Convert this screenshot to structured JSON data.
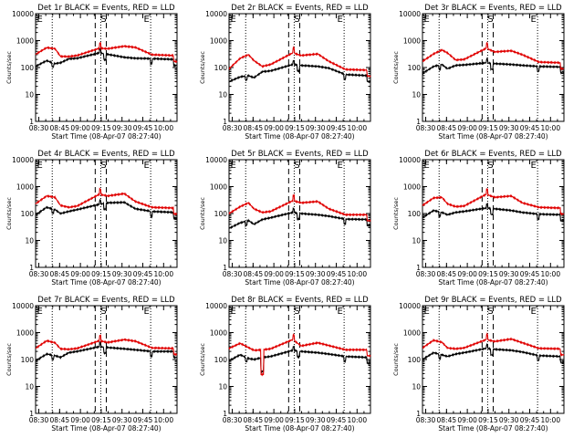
{
  "chart_data": [
    {
      "type": "line",
      "title": "Det 1r BLACK = Events, RED = LLD",
      "xlabel": "Start Time (08-Apr-07 08:27:40)",
      "ylabel": "Counts/sec",
      "yscale": "log",
      "ylim": [
        1,
        10000
      ],
      "yticks": [
        "1",
        "10",
        "100",
        "1000",
        "10000"
      ],
      "xticks": [
        "08:30",
        "08:45",
        "09:00",
        "09:15",
        "09:30",
        "09:45",
        "10:00"
      ],
      "markers": [
        "E",
        "S",
        "E"
      ],
      "dip_style": "small",
      "series": [
        {
          "name": "Events",
          "color": "#000000",
          "values": [
            110,
            180,
            140,
            150,
            210,
            220,
            350,
            310,
            240,
            220,
            215,
            200
          ]
        },
        {
          "name": "LLD",
          "color": "#e00000",
          "values": [
            310,
            550,
            500,
            260,
            255,
            280,
            520,
            500,
            620,
            560,
            300,
            280
          ]
        }
      ]
    },
    {
      "type": "line",
      "title": "Det 2r BLACK = Events, RED = LLD",
      "xlabel": "Start Time (08-Apr-07 08:27:40)",
      "ylabel": "Counts/sec",
      "yscale": "log",
      "ylim": [
        1,
        10000
      ],
      "yticks": [
        "1",
        "10",
        "100",
        "1000",
        "10000"
      ],
      "xticks": [
        "08:30",
        "08:45",
        "09:00",
        "09:15",
        "09:30",
        "09:45",
        "10:00"
      ],
      "markers": [
        "E",
        "S",
        "E"
      ],
      "dip_style": "small",
      "series": [
        {
          "name": "Events",
          "color": "#000000",
          "values": [
            30,
            45,
            50,
            42,
            70,
            75,
            130,
            120,
            110,
            95,
            55,
            50
          ]
        },
        {
          "name": "LLD",
          "color": "#e00000",
          "values": [
            90,
            220,
            300,
            180,
            110,
            130,
            350,
            280,
            320,
            170,
            85,
            80
          ]
        }
      ]
    },
    {
      "type": "line",
      "title": "Det 3r BLACK = Events, RED = LLD",
      "xlabel": "Start Time (08-Apr-07 08:27:40)",
      "ylabel": "Counts/sec",
      "yscale": "log",
      "ylim": [
        1,
        10000
      ],
      "yticks": [
        "1",
        "10",
        "100",
        "1000",
        "10000"
      ],
      "xticks": [
        "08:30",
        "08:45",
        "09:00",
        "09:15",
        "09:30",
        "09:45",
        "10:00"
      ],
      "markers": [
        "E",
        "S",
        "E"
      ],
      "dip_style": "small",
      "series": [
        {
          "name": "Events",
          "color": "#000000",
          "values": [
            60,
            110,
            130,
            90,
            120,
            125,
            150,
            140,
            130,
            120,
            110,
            105
          ]
        },
        {
          "name": "LLD",
          "color": "#e00000",
          "values": [
            170,
            320,
            450,
            350,
            190,
            200,
            520,
            380,
            420,
            300,
            160,
            150
          ]
        }
      ]
    },
    {
      "type": "line",
      "title": "Det 4r BLACK = Events, RED = LLD",
      "xlabel": "Start Time (08-Apr-07 08:27:40)",
      "ylabel": "Counts/sec",
      "yscale": "log",
      "ylim": [
        1,
        10000
      ],
      "yticks": [
        "1",
        "10",
        "100",
        "1000",
        "10000"
      ],
      "xticks": [
        "08:30",
        "08:45",
        "09:00",
        "09:15",
        "09:30",
        "09:45",
        "10:00"
      ],
      "markers": [
        "E",
        "S",
        "E"
      ],
      "dip_style": "small",
      "series": [
        {
          "name": "Events",
          "color": "#000000",
          "values": [
            90,
            170,
            140,
            100,
            120,
            140,
            220,
            250,
            260,
            150,
            120,
            110
          ]
        },
        {
          "name": "LLD",
          "color": "#e00000",
          "values": [
            230,
            450,
            400,
            200,
            170,
            190,
            520,
            450,
            550,
            280,
            170,
            160
          ]
        }
      ]
    },
    {
      "type": "line",
      "title": "Det 5r BLACK = Events, RED = LLD",
      "xlabel": "Start Time (08-Apr-07 08:27:40)",
      "ylabel": "Counts/sec",
      "yscale": "log",
      "ylim": [
        1,
        10000
      ],
      "yticks": [
        "1",
        "10",
        "100",
        "1000",
        "10000"
      ],
      "xticks": [
        "08:30",
        "08:45",
        "09:00",
        "09:15",
        "09:30",
        "09:45",
        "10:00"
      ],
      "markers": [
        "E",
        "S",
        "E"
      ],
      "dip_style": "small",
      "series": [
        {
          "name": "Events",
          "color": "#000000",
          "values": [
            28,
            45,
            55,
            40,
            60,
            70,
            110,
            100,
            90,
            80,
            62,
            60
          ]
        },
        {
          "name": "LLD",
          "color": "#e00000",
          "values": [
            100,
            180,
            250,
            150,
            110,
            120,
            300,
            250,
            280,
            150,
            90,
            90
          ]
        }
      ]
    },
    {
      "type": "line",
      "title": "Det 6r BLACK = Events, RED = LLD",
      "xlabel": "Start Time (08-Apr-07 08:27:40)",
      "ylabel": "Counts/sec",
      "yscale": "log",
      "ylim": [
        1,
        10000
      ],
      "yticks": [
        "1",
        "10",
        "100",
        "1000",
        "10000"
      ],
      "xticks": [
        "08:30",
        "08:45",
        "09:00",
        "09:15",
        "09:30",
        "09:45",
        "10:00"
      ],
      "markers": [
        "E",
        "S",
        "E"
      ],
      "dip_style": "small",
      "series": [
        {
          "name": "Events",
          "color": "#000000",
          "values": [
            70,
            130,
            110,
            90,
            110,
            120,
            160,
            150,
            130,
            110,
            95,
            90
          ]
        },
        {
          "name": "LLD",
          "color": "#e00000",
          "values": [
            200,
            380,
            400,
            230,
            180,
            190,
            520,
            400,
            450,
            250,
            170,
            160
          ]
        }
      ]
    },
    {
      "type": "line",
      "title": "Det 7r BLACK = Events, RED = LLD",
      "xlabel": "Start Time (08-Apr-07 08:27:40)",
      "ylabel": "Counts/sec",
      "yscale": "log",
      "ylim": [
        1,
        10000
      ],
      "yticks": [
        "1",
        "10",
        "100",
        "1000",
        "10000"
      ],
      "xticks": [
        "08:30",
        "08:45",
        "09:00",
        "09:15",
        "09:30",
        "09:45",
        "10:00"
      ],
      "markers": [
        "E",
        "S",
        "E"
      ],
      "dip_style": "small",
      "series": [
        {
          "name": "Events",
          "color": "#000000",
          "values": [
            90,
            160,
            140,
            120,
            180,
            200,
            300,
            280,
            250,
            230,
            200,
            200
          ]
        },
        {
          "name": "LLD",
          "color": "#e00000",
          "values": [
            260,
            500,
            420,
            250,
            240,
            260,
            500,
            430,
            550,
            480,
            270,
            260
          ]
        }
      ]
    },
    {
      "type": "line",
      "title": "Det 8r BLACK = Events, RED = LLD",
      "xlabel": "Start Time (08-Apr-07 08:27:40)",
      "ylabel": "Counts/sec",
      "yscale": "log",
      "ylim": [
        1,
        10000
      ],
      "yticks": [
        "1",
        "10",
        "100",
        "1000",
        "10000"
      ],
      "xticks": [
        "08:30",
        "08:45",
        "09:00",
        "09:15",
        "09:30",
        "09:45",
        "10:00"
      ],
      "markers": [
        "E",
        "S",
        "E"
      ],
      "dip_style": "deep",
      "series": [
        {
          "name": "Events",
          "color": "#000000",
          "values": [
            90,
            150,
            110,
            100,
            120,
            130,
            220,
            200,
            180,
            160,
            130,
            120
          ]
        },
        {
          "name": "LLD",
          "color": "#e00000",
          "values": [
            260,
            400,
            280,
            220,
            230,
            250,
            550,
            320,
            420,
            330,
            230,
            230
          ]
        }
      ]
    },
    {
      "type": "line",
      "title": "Det 9r BLACK = Events, RED = LLD",
      "xlabel": "Start Time (08-Apr-07 08:27:40)",
      "ylabel": "Counts/sec",
      "yscale": "log",
      "ylim": [
        1,
        10000
      ],
      "yticks": [
        "1",
        "10",
        "100",
        "1000",
        "10000"
      ],
      "xticks": [
        "08:30",
        "08:45",
        "09:00",
        "09:15",
        "09:30",
        "09:45",
        "10:00"
      ],
      "markers": [
        "E",
        "S",
        "E"
      ],
      "dip_style": "small",
      "series": [
        {
          "name": "Events",
          "color": "#000000",
          "values": [
            100,
            180,
            150,
            130,
            160,
            180,
            260,
            240,
            220,
            190,
            140,
            130
          ]
        },
        {
          "name": "LLD",
          "color": "#e00000",
          "values": [
            270,
            520,
            440,
            270,
            250,
            270,
            550,
            470,
            580,
            420,
            260,
            250
          ]
        }
      ]
    }
  ]
}
